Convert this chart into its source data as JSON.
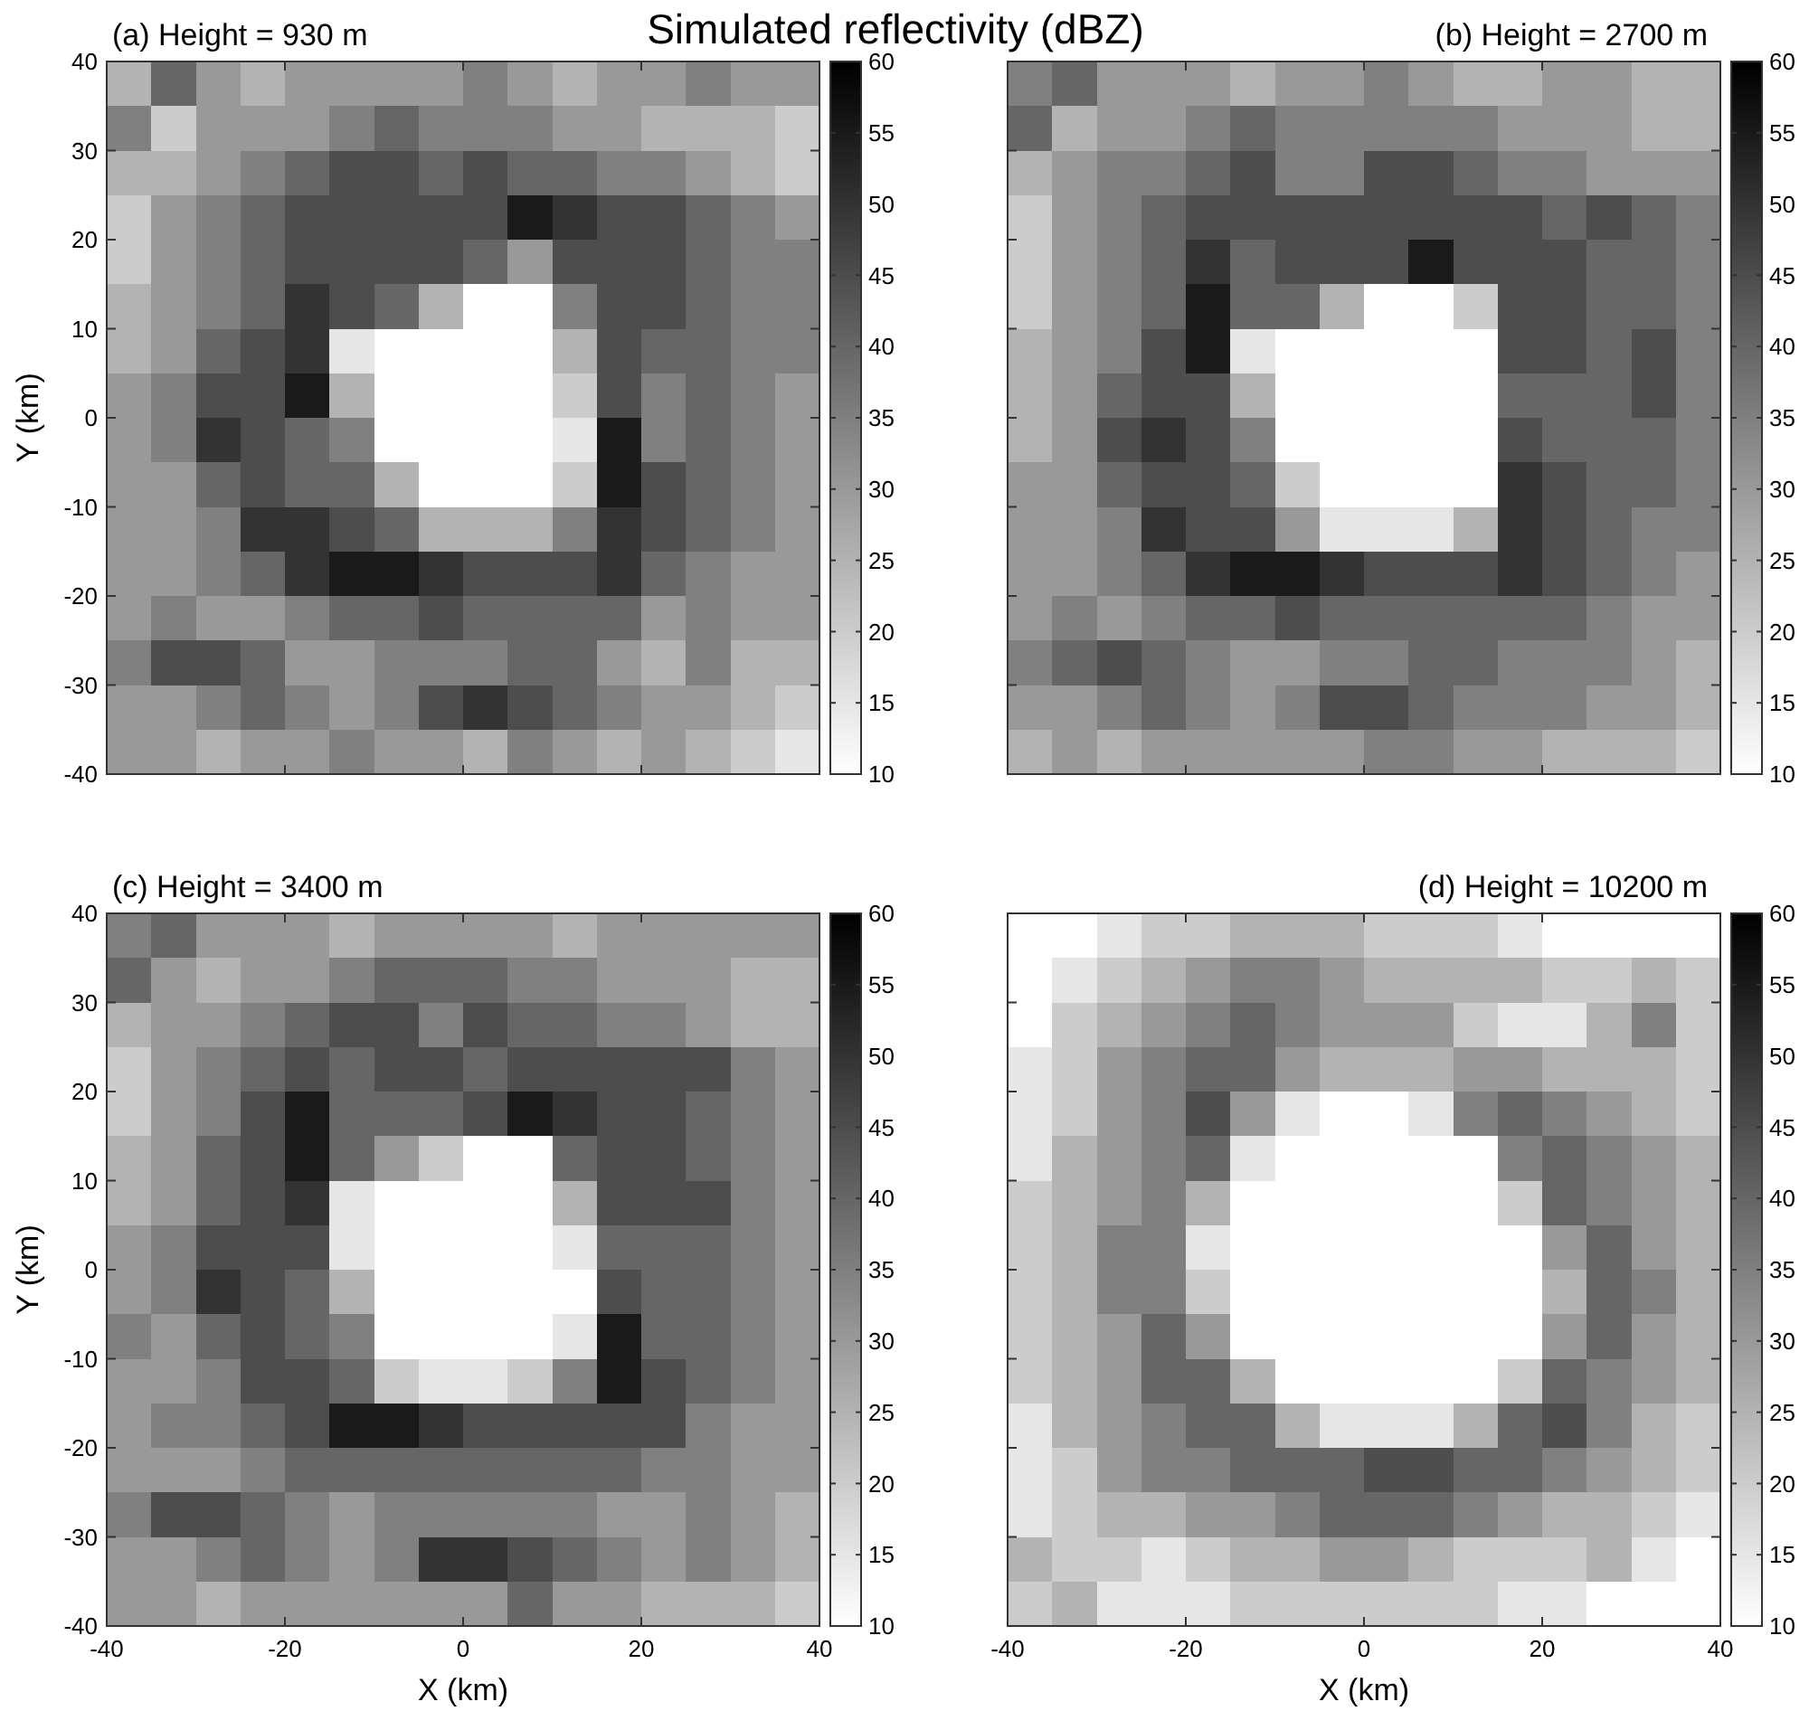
{
  "chart_data": [
    {
      "type": "heatmap",
      "title": "(a) Height = 930 m",
      "annotations": [
        "Simulated reflectivity (dBZ)"
      ],
      "ylabel": "Y (km)",
      "xlim": [
        -40,
        40
      ],
      "xticks": [
        -40,
        -20,
        0,
        20,
        40
      ],
      "ylim": [
        -40,
        40
      ],
      "yticks": [
        -40,
        -30,
        -20,
        -10,
        0,
        10,
        20,
        30,
        40
      ],
      "clim": [
        10,
        60
      ],
      "cticks": [
        10,
        15,
        20,
        25,
        30,
        35,
        40,
        45,
        50,
        55,
        60
      ],
      "tick_labels": "y",
      "cells": [
        [
          25,
          40,
          30,
          25,
          30,
          30,
          30,
          30,
          35,
          30,
          25,
          30,
          30,
          35,
          30,
          30
        ],
        [
          35,
          20,
          30,
          30,
          30,
          35,
          40,
          35,
          35,
          35,
          30,
          30,
          25,
          25,
          25,
          20
        ],
        [
          25,
          25,
          30,
          35,
          40,
          45,
          45,
          40,
          45,
          40,
          40,
          35,
          35,
          30,
          25,
          20
        ],
        [
          20,
          30,
          35,
          40,
          45,
          45,
          45,
          45,
          45,
          55,
          50,
          45,
          45,
          40,
          35,
          30
        ],
        [
          20,
          30,
          35,
          40,
          45,
          45,
          45,
          45,
          40,
          30,
          45,
          45,
          45,
          40,
          35,
          35
        ],
        [
          25,
          30,
          35,
          40,
          50,
          45,
          40,
          25,
          10,
          10,
          35,
          45,
          45,
          40,
          35,
          35
        ],
        [
          25,
          30,
          40,
          45,
          50,
          15,
          10,
          10,
          10,
          10,
          25,
          45,
          40,
          40,
          35,
          35
        ],
        [
          30,
          35,
          45,
          45,
          55,
          25,
          10,
          10,
          10,
          10,
          20,
          45,
          35,
          40,
          35,
          30
        ],
        [
          30,
          35,
          50,
          45,
          40,
          35,
          10,
          10,
          10,
          10,
          15,
          55,
          35,
          40,
          35,
          30
        ],
        [
          30,
          30,
          40,
          45,
          40,
          40,
          25,
          10,
          10,
          10,
          20,
          55,
          45,
          40,
          35,
          30
        ],
        [
          30,
          30,
          35,
          50,
          50,
          45,
          40,
          25,
          25,
          25,
          35,
          50,
          45,
          40,
          35,
          30
        ],
        [
          30,
          30,
          35,
          40,
          50,
          55,
          55,
          50,
          45,
          45,
          45,
          50,
          40,
          35,
          30,
          30
        ],
        [
          30,
          35,
          30,
          30,
          35,
          40,
          40,
          45,
          40,
          40,
          40,
          40,
          30,
          35,
          30,
          30
        ],
        [
          35,
          45,
          45,
          40,
          30,
          30,
          35,
          35,
          35,
          40,
          40,
          30,
          25,
          35,
          25,
          25
        ],
        [
          30,
          30,
          35,
          40,
          35,
          30,
          35,
          45,
          50,
          45,
          40,
          35,
          30,
          30,
          25,
          20
        ],
        [
          30,
          30,
          25,
          30,
          30,
          35,
          30,
          30,
          25,
          35,
          30,
          25,
          30,
          25,
          20,
          15
        ]
      ]
    },
    {
      "type": "heatmap",
      "title": "(b) Height = 2700 m",
      "xlim": [
        -40,
        40
      ],
      "xticks": [
        -40,
        -20,
        0,
        20,
        40
      ],
      "ylim": [
        -40,
        40
      ],
      "yticks": [
        -40,
        -30,
        -20,
        -10,
        0,
        10,
        20,
        30,
        40
      ],
      "clim": [
        10,
        60
      ],
      "cticks": [
        10,
        15,
        20,
        25,
        30,
        35,
        40,
        45,
        50,
        55,
        60
      ],
      "tick_labels": false,
      "cells": [
        [
          35,
          40,
          30,
          30,
          30,
          25,
          30,
          30,
          35,
          30,
          25,
          25,
          30,
          30,
          25,
          25
        ],
        [
          40,
          25,
          30,
          30,
          35,
          40,
          35,
          35,
          35,
          35,
          35,
          30,
          30,
          30,
          25,
          25
        ],
        [
          25,
          30,
          35,
          35,
          40,
          45,
          35,
          35,
          45,
          45,
          40,
          35,
          35,
          30,
          30,
          30
        ],
        [
          20,
          30,
          35,
          40,
          45,
          45,
          45,
          45,
          45,
          45,
          45,
          45,
          40,
          45,
          40,
          35
        ],
        [
          20,
          30,
          35,
          40,
          50,
          40,
          45,
          45,
          45,
          55,
          45,
          45,
          45,
          40,
          40,
          35
        ],
        [
          20,
          30,
          35,
          40,
          55,
          40,
          40,
          25,
          10,
          10,
          20,
          45,
          45,
          40,
          40,
          35
        ],
        [
          25,
          30,
          35,
          45,
          55,
          15,
          10,
          10,
          10,
          10,
          10,
          45,
          45,
          40,
          45,
          35
        ],
        [
          25,
          30,
          40,
          45,
          45,
          25,
          10,
          10,
          10,
          10,
          10,
          40,
          40,
          40,
          45,
          35
        ],
        [
          25,
          30,
          45,
          50,
          45,
          35,
          10,
          10,
          10,
          10,
          10,
          45,
          40,
          40,
          40,
          35
        ],
        [
          30,
          30,
          40,
          45,
          45,
          40,
          20,
          10,
          10,
          10,
          10,
          50,
          45,
          40,
          40,
          35
        ],
        [
          30,
          30,
          35,
          50,
          45,
          45,
          30,
          15,
          15,
          15,
          25,
          50,
          45,
          40,
          35,
          35
        ],
        [
          30,
          30,
          35,
          40,
          50,
          55,
          55,
          50,
          45,
          45,
          45,
          50,
          45,
          40,
          35,
          30
        ],
        [
          30,
          35,
          30,
          35,
          40,
          40,
          45,
          40,
          40,
          40,
          40,
          40,
          40,
          35,
          30,
          30
        ],
        [
          35,
          40,
          45,
          40,
          35,
          30,
          30,
          35,
          35,
          40,
          40,
          35,
          35,
          35,
          30,
          25
        ],
        [
          30,
          30,
          35,
          40,
          35,
          30,
          35,
          45,
          45,
          40,
          35,
          35,
          35,
          30,
          30,
          25
        ],
        [
          25,
          30,
          25,
          30,
          30,
          30,
          30,
          30,
          35,
          35,
          30,
          30,
          25,
          25,
          25,
          20
        ]
      ]
    },
    {
      "type": "heatmap",
      "title": "(c) Height = 3400 m",
      "xlabel": "X (km)",
      "ylabel": "Y (km)",
      "xlim": [
        -40,
        40
      ],
      "xticks": [
        -40,
        -20,
        0,
        20,
        40
      ],
      "ylim": [
        -40,
        40
      ],
      "yticks": [
        -40,
        -30,
        -20,
        -10,
        0,
        10,
        20,
        30,
        40
      ],
      "clim": [
        10,
        60
      ],
      "cticks": [
        10,
        15,
        20,
        25,
        30,
        35,
        40,
        45,
        50,
        55,
        60
      ],
      "cells": [
        [
          35,
          40,
          30,
          30,
          30,
          25,
          30,
          30,
          30,
          30,
          25,
          30,
          30,
          30,
          30,
          30
        ],
        [
          40,
          30,
          25,
          30,
          30,
          35,
          40,
          40,
          40,
          35,
          35,
          30,
          30,
          30,
          25,
          25
        ],
        [
          25,
          30,
          30,
          35,
          40,
          45,
          45,
          35,
          45,
          40,
          40,
          35,
          35,
          30,
          25,
          25
        ],
        [
          20,
          30,
          35,
          40,
          45,
          40,
          45,
          45,
          40,
          45,
          45,
          45,
          45,
          45,
          35,
          30
        ],
        [
          20,
          30,
          35,
          45,
          55,
          40,
          40,
          40,
          45,
          55,
          50,
          45,
          45,
          40,
          35,
          30
        ],
        [
          25,
          30,
          40,
          45,
          55,
          40,
          30,
          20,
          10,
          10,
          40,
          45,
          45,
          40,
          35,
          30
        ],
        [
          25,
          30,
          40,
          45,
          50,
          15,
          10,
          10,
          10,
          10,
          25,
          45,
          45,
          45,
          35,
          30
        ],
        [
          30,
          35,
          45,
          45,
          45,
          15,
          10,
          10,
          10,
          10,
          15,
          40,
          40,
          40,
          35,
          30
        ],
        [
          30,
          35,
          50,
          45,
          40,
          25,
          10,
          10,
          10,
          10,
          10,
          45,
          40,
          40,
          35,
          30
        ],
        [
          35,
          30,
          40,
          45,
          40,
          35,
          10,
          10,
          10,
          10,
          15,
          55,
          40,
          40,
          35,
          30
        ],
        [
          30,
          30,
          35,
          45,
          45,
          40,
          20,
          15,
          15,
          20,
          35,
          55,
          45,
          40,
          35,
          30
        ],
        [
          30,
          35,
          35,
          40,
          45,
          55,
          55,
          50,
          45,
          45,
          45,
          45,
          45,
          35,
          30,
          30
        ],
        [
          30,
          30,
          30,
          35,
          40,
          40,
          40,
          40,
          40,
          40,
          40,
          40,
          35,
          35,
          30,
          30
        ],
        [
          35,
          45,
          45,
          40,
          35,
          30,
          35,
          35,
          35,
          35,
          35,
          30,
          30,
          35,
          30,
          25
        ],
        [
          30,
          30,
          35,
          40,
          35,
          30,
          35,
          50,
          50,
          45,
          40,
          35,
          30,
          35,
          30,
          25
        ],
        [
          30,
          30,
          25,
          30,
          30,
          30,
          30,
          30,
          30,
          40,
          30,
          30,
          25,
          25,
          25,
          20
        ]
      ]
    },
    {
      "type": "heatmap",
      "title": "(d) Height = 10200 m",
      "xlabel": "X (km)",
      "xlim": [
        -40,
        40
      ],
      "xticks": [
        -40,
        -20,
        0,
        20,
        40
      ],
      "ylim": [
        -40,
        40
      ],
      "yticks": [
        -40,
        -30,
        -20,
        -10,
        0,
        10,
        20,
        30,
        40
      ],
      "clim": [
        10,
        60
      ],
      "cticks": [
        10,
        15,
        20,
        25,
        30,
        35,
        40,
        45,
        50,
        55,
        60
      ],
      "tick_labels": "x",
      "cells": [
        [
          10,
          10,
          15,
          20,
          20,
          25,
          25,
          25,
          20,
          20,
          20,
          15,
          10,
          10,
          10,
          10
        ],
        [
          10,
          15,
          20,
          25,
          30,
          35,
          35,
          30,
          25,
          25,
          25,
          25,
          20,
          20,
          25,
          20
        ],
        [
          10,
          20,
          25,
          30,
          35,
          40,
          35,
          30,
          30,
          30,
          20,
          15,
          15,
          25,
          35,
          20
        ],
        [
          15,
          20,
          30,
          35,
          40,
          40,
          30,
          25,
          25,
          25,
          30,
          30,
          25,
          25,
          25,
          20
        ],
        [
          15,
          20,
          30,
          35,
          45,
          30,
          15,
          10,
          10,
          15,
          35,
          40,
          35,
          30,
          25,
          20
        ],
        [
          15,
          25,
          30,
          35,
          40,
          15,
          10,
          10,
          10,
          10,
          10,
          35,
          40,
          35,
          30,
          25
        ],
        [
          20,
          25,
          30,
          35,
          25,
          10,
          10,
          10,
          10,
          10,
          10,
          20,
          40,
          35,
          30,
          25
        ],
        [
          20,
          25,
          35,
          35,
          15,
          10,
          10,
          10,
          10,
          10,
          10,
          10,
          30,
          40,
          30,
          25
        ],
        [
          20,
          25,
          35,
          35,
          20,
          10,
          10,
          10,
          10,
          10,
          10,
          10,
          25,
          40,
          35,
          25
        ],
        [
          20,
          25,
          30,
          40,
          30,
          10,
          10,
          10,
          10,
          10,
          10,
          10,
          30,
          40,
          30,
          25
        ],
        [
          20,
          25,
          30,
          40,
          40,
          25,
          10,
          10,
          10,
          10,
          10,
          20,
          40,
          35,
          30,
          25
        ],
        [
          15,
          25,
          30,
          35,
          40,
          40,
          25,
          15,
          15,
          15,
          25,
          40,
          45,
          35,
          25,
          20
        ],
        [
          15,
          20,
          30,
          35,
          35,
          40,
          40,
          40,
          45,
          45,
          40,
          40,
          35,
          30,
          25,
          20
        ],
        [
          15,
          20,
          25,
          25,
          30,
          30,
          35,
          40,
          40,
          40,
          35,
          30,
          25,
          25,
          20,
          15
        ],
        [
          25,
          20,
          20,
          15,
          20,
          25,
          25,
          30,
          30,
          25,
          20,
          20,
          20,
          25,
          15,
          10
        ],
        [
          20,
          25,
          15,
          15,
          15,
          20,
          20,
          20,
          20,
          20,
          20,
          15,
          15,
          10,
          10,
          10
        ]
      ]
    }
  ]
}
